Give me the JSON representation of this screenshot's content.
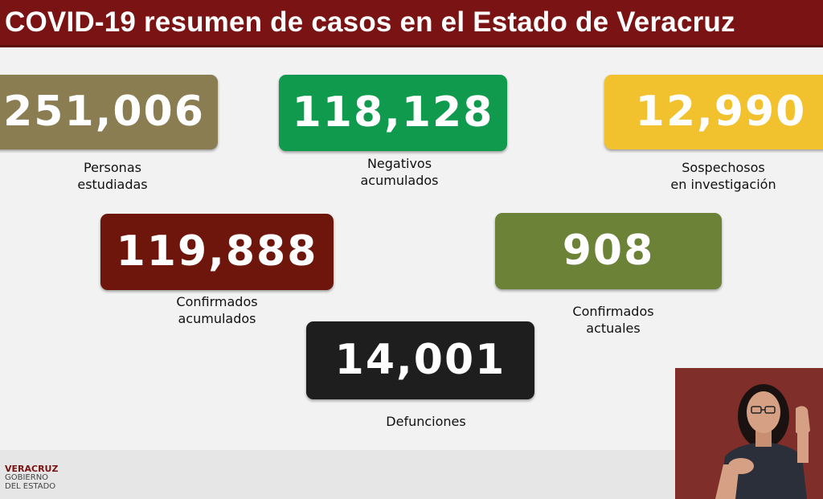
{
  "header": {
    "title": "COVID-19 resumen de casos en el Estado de Veracruz"
  },
  "stats": [
    {
      "value": "251,006",
      "label_lines": [
        "Personas",
        "estudiadas"
      ],
      "color": "#8b7d52"
    },
    {
      "value": "118,128",
      "label_lines": [
        "Negativos",
        "acumulados"
      ],
      "color": "#0f9a4e"
    },
    {
      "value": "12,990",
      "label_lines": [
        "Sospechosos",
        "en investigación"
      ],
      "color": "#f2c12e"
    },
    {
      "value": "119,888",
      "label_lines": [
        "Confirmados",
        "acumulados"
      ],
      "color": "#6e160c"
    },
    {
      "value": "908",
      "label_lines": [
        "Confirmados",
        "actuales"
      ],
      "color": "#6b8237"
    },
    {
      "value": "14,001",
      "label_lines": [
        "Defunciones"
      ],
      "color": "#1e1e1e"
    }
  ],
  "logo": {
    "line1": "VERACRUZ",
    "line2": "GOBIERNO",
    "line3": "DEL ESTADO"
  },
  "video": {
    "description_icon": "sign-language-interpreter-icon"
  }
}
